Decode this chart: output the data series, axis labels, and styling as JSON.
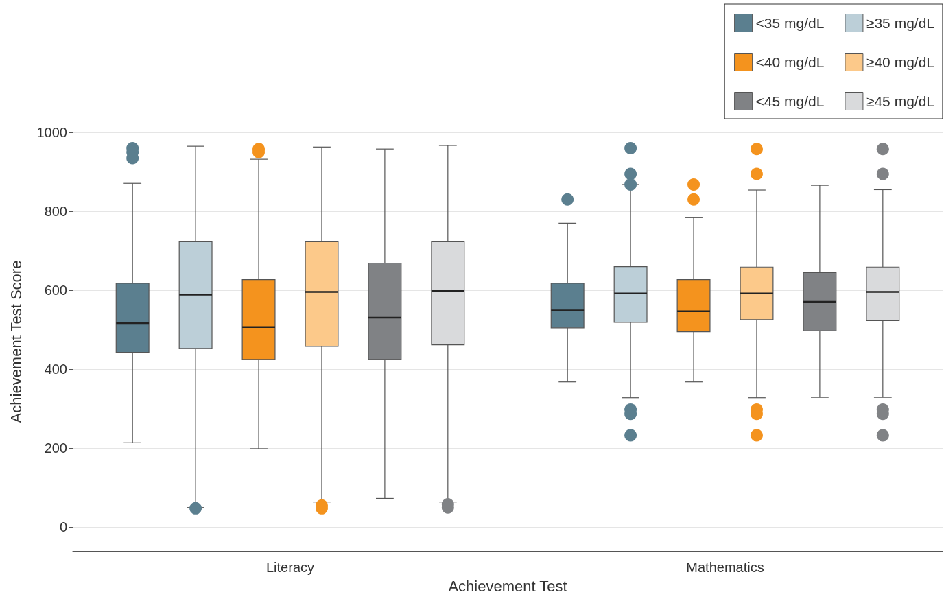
{
  "chart_data": {
    "type": "box",
    "xlabel": "Achievement Test",
    "ylabel": "Achievement Test Score",
    "categories": [
      "Literacy",
      "Mathematics"
    ],
    "ylim": [
      -60,
      1000
    ],
    "yticks": [
      0,
      200,
      400,
      600,
      800,
      1000
    ],
    "grid": "y",
    "legend": "top right",
    "series": [
      {
        "name": "<35 mg/dL",
        "color": "#5b7f8f",
        "boxes": [
          {
            "low": 214,
            "q1": 443,
            "median": 517,
            "q3": 618,
            "high": 871,
            "outliers": [
              960,
              950,
              935
            ]
          },
          {
            "low": 368,
            "q1": 505,
            "median": 549,
            "q3": 618,
            "high": 770,
            "outliers": [
              830
            ]
          }
        ]
      },
      {
        "name": "≥35 mg/dL",
        "color": "#bccfd8",
        "boxes": [
          {
            "low": 50,
            "q1": 453,
            "median": 589,
            "q3": 723,
            "high": 965,
            "outliers": [
              48
            ]
          },
          {
            "low": 328,
            "q1": 519,
            "median": 592,
            "q3": 660,
            "high": 868,
            "outliers": [
              960,
              895,
              868,
              298,
              287,
              233
            ]
          }
        ]
      },
      {
        "name": "<40 mg/dL",
        "color": "#f4931e",
        "boxes": [
          {
            "low": 199,
            "q1": 425,
            "median": 507,
            "q3": 627,
            "high": 932,
            "outliers": [
              958,
              950
            ]
          },
          {
            "low": 368,
            "q1": 495,
            "median": 547,
            "q3": 627,
            "high": 784,
            "outliers": [
              868,
              830
            ]
          }
        ]
      },
      {
        "name": "≥40 mg/dL",
        "color": "#fcc98a",
        "boxes": [
          {
            "low": 64,
            "q1": 458,
            "median": 596,
            "q3": 723,
            "high": 963,
            "outliers": [
              55,
              48
            ]
          },
          {
            "low": 328,
            "q1": 526,
            "median": 592,
            "q3": 659,
            "high": 854,
            "outliers": [
              958,
              895,
              298,
              287,
              233
            ]
          }
        ]
      },
      {
        "name": "<45 mg/dL",
        "color": "#808285",
        "boxes": [
          {
            "low": 73,
            "q1": 425,
            "median": 531,
            "q3": 669,
            "high": 958
          },
          {
            "low": 329,
            "q1": 497,
            "median": 571,
            "q3": 645,
            "high": 866
          }
        ]
      },
      {
        "name": "≥45 mg/dL",
        "color": "#d9dadc",
        "boxes": [
          {
            "low": 64,
            "q1": 462,
            "median": 598,
            "q3": 723,
            "high": 967,
            "outliers": [
              58,
              50
            ]
          },
          {
            "low": 329,
            "q1": 523,
            "median": 596,
            "q3": 659,
            "high": 855,
            "outliers": [
              958,
              895,
              298,
              287,
              233
            ]
          }
        ]
      }
    ]
  }
}
